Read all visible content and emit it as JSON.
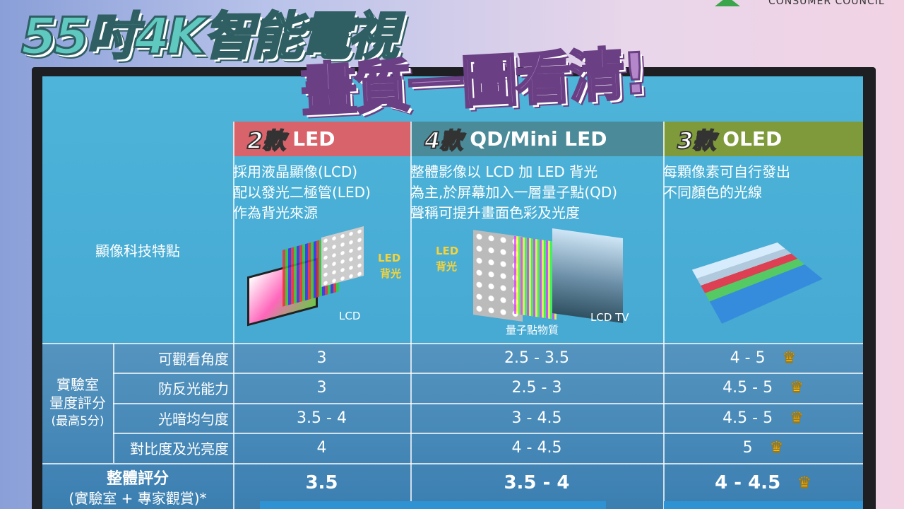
{
  "logo": {
    "text": "CONSUMER COUNCIL"
  },
  "title": {
    "line1": "55吋4K智能電視",
    "line2": "畫質一圖看清!"
  },
  "columns": [
    {
      "count": "2款",
      "name": "LED",
      "color": "#d9636a",
      "desc": [
        "採用液晶顯像(LCD)",
        "配以發光二極管(LED)",
        "作為背光來源"
      ],
      "illustration_labels": [
        "LED",
        "背光",
        "LCD"
      ]
    },
    {
      "count": "4款",
      "name": "QD/Mini LED",
      "color": "#4b8a99",
      "desc": [
        "整體影像以 LCD 加 LED 背光",
        "為主,於屏幕加入一層量子點(QD)",
        "聲稱可提升畫面色彩及光度"
      ],
      "illustration_labels": [
        "LED",
        "背光",
        "量子點物質",
        "LCD TV"
      ]
    },
    {
      "count": "3款",
      "name": "OLED",
      "color": "#7f9a3b",
      "desc": [
        "每顆像素可自行發出",
        "不同顏色的光線"
      ]
    }
  ],
  "row_label_tech": "顯像科技特點",
  "lab_group": {
    "line1": "實驗室",
    "line2": "量度評分",
    "line3": "(最高5分)"
  },
  "rows": [
    {
      "label": "可觀看角度",
      "values": [
        "3",
        "2.5 - 3.5",
        "4 - 5"
      ],
      "crown": true
    },
    {
      "label": "防反光能力",
      "values": [
        "3",
        "2.5 - 3",
        "4.5 - 5"
      ],
      "crown": true
    },
    {
      "label": "光暗均勻度",
      "values": [
        "3.5 - 4",
        "3 - 4.5",
        "4.5 - 5"
      ],
      "crown": true
    },
    {
      "label": "對比度及光亮度",
      "values": [
        "4",
        "4 - 4.5",
        "5"
      ],
      "crown": true
    }
  ],
  "overall": {
    "label": "整體評分",
    "sub": "(實驗室 + 專家觀賞)*",
    "values": [
      "3.5",
      "3.5 - 4",
      "4 - 4.5"
    ],
    "crown": true
  },
  "crown_color": "#f3c332"
}
